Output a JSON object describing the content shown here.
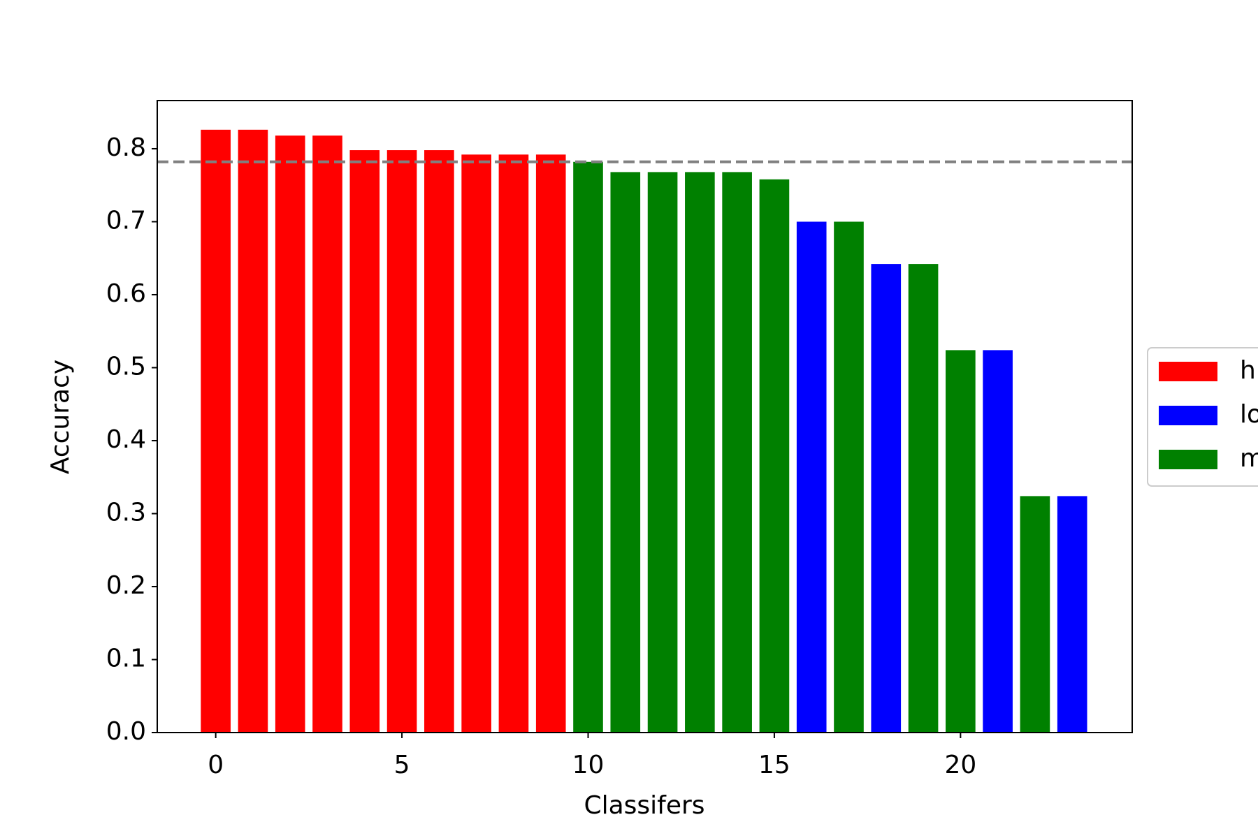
{
  "chart_data": {
    "type": "bar",
    "xlabel": "Classifers",
    "ylabel": "Accuracy",
    "series": [
      {
        "name": "h",
        "color": "#ff0000",
        "x": [
          0,
          1,
          2,
          3,
          4,
          5,
          6,
          7,
          8,
          9
        ],
        "values": [
          0.826,
          0.826,
          0.818,
          0.818,
          0.798,
          0.798,
          0.798,
          0.792,
          0.792,
          0.792
        ]
      },
      {
        "name": "lo",
        "color": "#0000ff",
        "x": [
          16,
          18,
          21,
          23
        ],
        "values": [
          0.7,
          0.642,
          0.524,
          0.324
        ]
      },
      {
        "name": "m",
        "color": "#008000",
        "x": [
          10,
          11,
          12,
          13,
          14,
          15,
          17,
          19,
          20,
          22
        ],
        "values": [
          0.782,
          0.768,
          0.768,
          0.768,
          0.768,
          0.758,
          0.7,
          0.642,
          0.524,
          0.324
        ]
      }
    ],
    "reference_line": {
      "value": 0.782,
      "color": "#808080"
    },
    "xlim": [
      -1.57,
      24.61
    ],
    "xticks": [
      0,
      5,
      10,
      15,
      20
    ],
    "ylim": [
      0,
      0.866
    ],
    "yticks": [
      {
        "value": 0,
        "label": "0.0"
      },
      0.1,
      0.2,
      0.3,
      0.4,
      0.5,
      0.6,
      0.7,
      0.8
    ],
    "legend": "outside-right"
  }
}
